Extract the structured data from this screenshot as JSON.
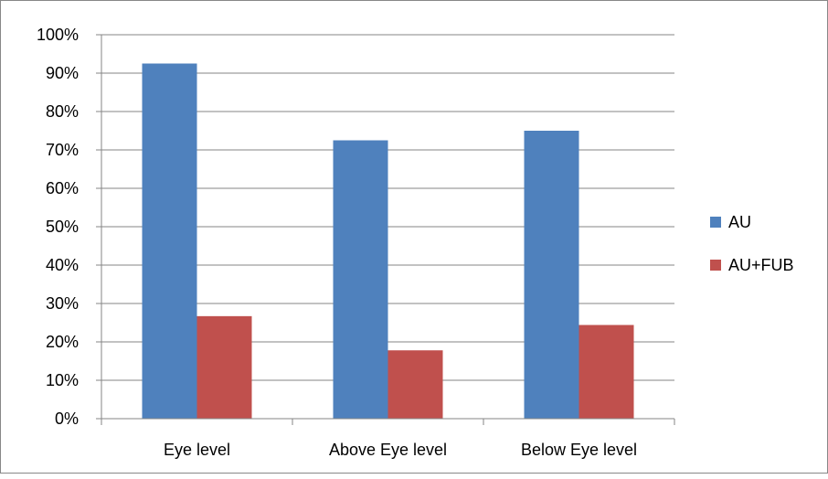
{
  "chart_data": {
    "type": "bar",
    "title": "",
    "xlabel": "",
    "ylabel": "",
    "categories": [
      "Eye level",
      "Above Eye level",
      "Below Eye level"
    ],
    "series": [
      {
        "name": "AU",
        "values": [
          92.5,
          72.5,
          75.0
        ],
        "color": "#4F81BD"
      },
      {
        "name": "AU+FUB",
        "values": [
          26.7,
          17.8,
          24.4
        ],
        "color": "#C0504D"
      }
    ],
    "ylim": [
      0,
      100
    ],
    "yticks": [
      0,
      10,
      20,
      30,
      40,
      50,
      60,
      70,
      80,
      90,
      100
    ],
    "ytick_labels": [
      "0%",
      "10%",
      "20%",
      "30%",
      "40%",
      "50%",
      "60%",
      "70%",
      "80%",
      "90%",
      "100%"
    ],
    "grid": true,
    "legend_position": "right"
  }
}
